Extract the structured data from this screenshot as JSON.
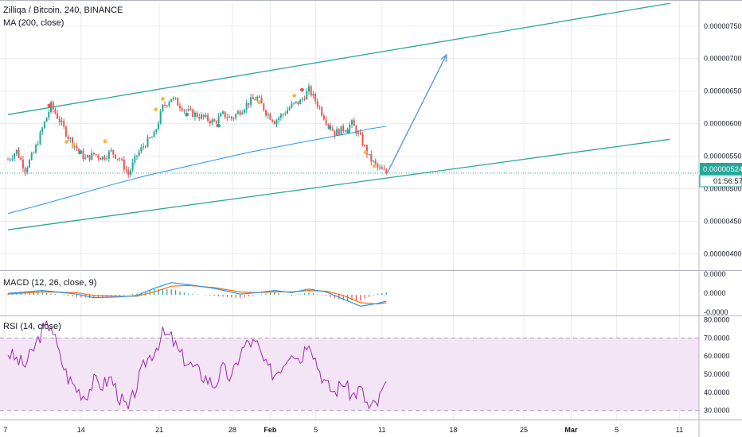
{
  "header": {
    "symbol_line": "Zilliqa / Bitcoin, 240, BINANCE",
    "ma_legend": "MA (200, close)"
  },
  "macd_panel": {
    "legend": "MACD (12, 26, close, 9)"
  },
  "rsi_panel": {
    "legend": "RSI (14, close)"
  },
  "current_price": {
    "value": "0.00000524",
    "countdown": "01:56:57"
  },
  "colors": {
    "up": "#26a69a",
    "down": "#ef5350",
    "channel": "#26a69a",
    "ma": "#2196f3",
    "arrow": "#5b9bd5",
    "last_price": "#26a69a",
    "macd_line": "#2196f3",
    "signal_line": "#ff6d00",
    "rsi_line": "#9c27b0",
    "rsi_band": "#f3e5f5",
    "grid": "#e8ebef"
  },
  "chart_data": [
    {
      "type": "candlestick",
      "panel": "price",
      "yticks": [
        "0.00000750",
        "0.00000700",
        "0.00000650",
        "0.00000600",
        "0.00000550",
        "0.00000500",
        "0.00000450",
        "0.00000400"
      ],
      "ylim": [
        3.75e-06,
        7.9e-06
      ],
      "xticks": [
        "7",
        "14",
        "21",
        "28",
        "Feb",
        "5",
        "11",
        "18",
        "25",
        "Mar",
        "5",
        "11"
      ],
      "close_path_days": [
        0,
        1,
        2,
        3,
        4,
        5,
        6,
        7,
        8,
        9,
        10,
        11,
        12,
        13,
        14,
        15,
        16,
        17,
        18,
        19,
        20,
        21,
        22,
        23,
        24,
        25,
        26,
        27,
        28,
        29,
        30,
        31,
        32,
        33,
        34,
        35,
        36,
        37,
        38,
        39,
        40,
        41,
        42,
        43,
        44
      ],
      "close_path": [
        5.45e-06,
        5.58e-06,
        5.3e-06,
        5.55e-06,
        5.92e-06,
        6.28e-06,
        6.05e-06,
        5.8e-06,
        5.62e-06,
        5.46e-06,
        5.53e-06,
        5.48e-06,
        5.57e-06,
        5.46e-06,
        5.22e-06,
        5.52e-06,
        5.7e-06,
        5.82e-06,
        6.25e-06,
        6.4e-06,
        6.28e-06,
        6.18e-06,
        6.13e-06,
        6.08e-06,
        6.02e-06,
        6.14e-06,
        6.08e-06,
        6.2e-06,
        6.33e-06,
        6.4e-06,
        6.18e-06,
        6.04e-06,
        6.15e-06,
        6.28e-06,
        6.34e-06,
        6.52e-06,
        6.3e-06,
        6.05e-06,
        5.86e-06,
        5.92e-06,
        6e-06,
        5.78e-06,
        5.48e-06,
        5.32e-06,
        5.24e-06
      ],
      "ma200": {
        "name": "MA (200, close)",
        "x_days": [
          0,
          4,
          8,
          12,
          16,
          20,
          24,
          28,
          32,
          36,
          40,
          42,
          44
        ],
        "values": [
          4.62e-06,
          4.76e-06,
          4.91e-06,
          5.06e-06,
          5.2e-06,
          5.32e-06,
          5.44e-06,
          5.56e-06,
          5.66e-06,
          5.76e-06,
          5.86e-06,
          5.92e-06,
          5.96e-06
        ]
      },
      "channel_upper": {
        "x_days": [
          0,
          77
        ],
        "values": [
          6.14e-06,
          7.85e-06
        ]
      },
      "channel_lower": {
        "x_days": [
          0,
          77
        ],
        "values": [
          4.37e-06,
          5.76e-06
        ]
      },
      "projection_arrow": {
        "from": [
          44.1,
          5.24e-06
        ],
        "to": [
          51,
          7.06e-06
        ]
      },
      "last_price_line": 5.24e-06
    },
    {
      "type": "line",
      "panel": "macd",
      "yticks": [
        "0.0000",
        "0.0000",
        "-0.0000"
      ],
      "series": [
        {
          "name": "MACD",
          "x": [
            0,
            4,
            8,
            10,
            13,
            15,
            17,
            19,
            21,
            24,
            27,
            29,
            31,
            33,
            35,
            37,
            39,
            41,
            43,
            44
          ],
          "values": [
            0.2,
            0.6,
            0.1,
            -0.4,
            -0.3,
            -0.1,
            0.9,
            1.7,
            1.4,
            0.9,
            0.1,
            0.3,
            0.6,
            0.3,
            0.8,
            0.4,
            -0.6,
            -1.6,
            -1.2,
            -0.9
          ]
        },
        {
          "name": "Signal",
          "x": [
            0,
            4,
            8,
            10,
            13,
            15,
            17,
            19,
            21,
            24,
            27,
            29,
            31,
            33,
            35,
            37,
            39,
            41,
            43,
            44
          ],
          "values": [
            0.1,
            0.4,
            0.3,
            -0.1,
            -0.2,
            -0.2,
            0.4,
            1.2,
            1.3,
            1.0,
            0.4,
            0.3,
            0.4,
            0.4,
            0.6,
            0.5,
            -0.1,
            -1.1,
            -1.3,
            -1.1
          ]
        }
      ]
    },
    {
      "type": "line",
      "panel": "rsi",
      "yticks": [
        "80.0000",
        "70.0000",
        "60.0000",
        "50.0000",
        "40.0000",
        "30.0000"
      ],
      "ylim": [
        25,
        82
      ],
      "bands": [
        70,
        30
      ],
      "series": [
        {
          "name": "RSI",
          "x": [
            0,
            1,
            2,
            3,
            4,
            5,
            6,
            7,
            8,
            9,
            10,
            11,
            12,
            13,
            14,
            15,
            16,
            17,
            18,
            19,
            20,
            21,
            22,
            23,
            24,
            25,
            26,
            27,
            28,
            29,
            30,
            31,
            32,
            33,
            34,
            35,
            36,
            37,
            38,
            39,
            40,
            41,
            42,
            43,
            44
          ],
          "values": [
            62,
            58,
            55,
            64,
            74,
            78,
            60,
            48,
            42,
            38,
            46,
            44,
            48,
            37,
            30,
            44,
            57,
            63,
            72,
            70,
            61,
            56,
            52,
            48,
            44,
            53,
            47,
            62,
            68,
            66,
            54,
            50,
            56,
            64,
            58,
            70,
            55,
            44,
            40,
            46,
            38,
            42,
            31,
            34,
            46
          ]
        }
      ]
    }
  ]
}
